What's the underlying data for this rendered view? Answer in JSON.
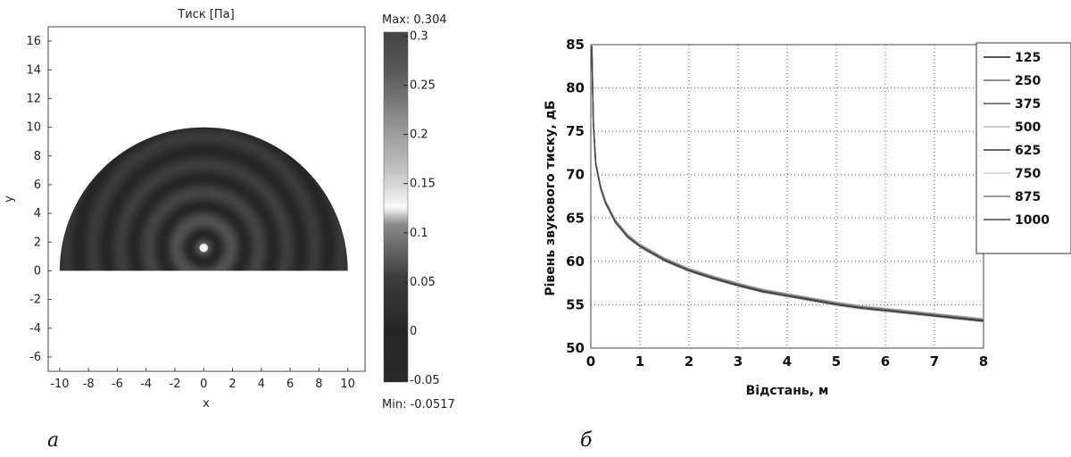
{
  "chart_data": [
    {
      "type": "heatmap",
      "title": "Тиск [Па]",
      "xlabel": "x",
      "ylabel": "y",
      "xlim": [
        -10.8,
        11.2
      ],
      "ylim": [
        -7,
        17
      ],
      "xticks": [
        -10,
        -8,
        -6,
        -4,
        -2,
        0,
        2,
        4,
        6,
        8,
        10
      ],
      "yticks": [
        -6,
        -4,
        -2,
        0,
        2,
        4,
        6,
        8,
        10,
        12,
        14,
        16
      ],
      "source": [
        0,
        1.6
      ],
      "domain_radius": 10,
      "ring_count": 8,
      "colorbar": {
        "max_label": "Max: 0.304",
        "min_label": "Min: -0.0517",
        "range": [
          -0.0517,
          0.304
        ],
        "ticks": [
          -0.05,
          0,
          0.05,
          0.1,
          0.15,
          0.2,
          0.25,
          0.3
        ],
        "tick_labels": [
          "-0.05",
          "0",
          "0.05",
          "0.1",
          "0.15",
          "0.2",
          "0.25",
          "0.3"
        ]
      },
      "panel_label": "а"
    },
    {
      "type": "line",
      "title": "",
      "xlabel": "Відстань, м",
      "ylabel": "Рівень звукового тиску, дБ",
      "xlim": [
        0,
        8
      ],
      "ylim": [
        50,
        85
      ],
      "xticks": [
        0,
        1,
        2,
        3,
        4,
        5,
        6,
        7,
        8
      ],
      "yticks": [
        50,
        55,
        60,
        65,
        70,
        75,
        80,
        85
      ],
      "grid": true,
      "legend_position": "right",
      "x": [
        0.02,
        0.05,
        0.1,
        0.2,
        0.3,
        0.5,
        0.75,
        1,
        1.5,
        2,
        2.5,
        3,
        3.5,
        4,
        4.5,
        5,
        5.5,
        6,
        6.5,
        7,
        7.5,
        8
      ],
      "series": [
        {
          "name": "125",
          "values": [
            85,
            76,
            71.3,
            68.5,
            66.8,
            64.6,
            62.9,
            61.8,
            60.2,
            59.0,
            58.1,
            57.3,
            56.6,
            56.1,
            55.6,
            55.1,
            54.7,
            54.4,
            54.1,
            53.8,
            53.5,
            53.2
          ]
        },
        {
          "name": "250",
          "values": [
            84.8,
            76.1,
            71.4,
            68.6,
            66.9,
            64.7,
            63.0,
            61.9,
            60.3,
            59.1,
            58.2,
            57.4,
            56.7,
            56.2,
            55.7,
            55.2,
            54.8,
            54.5,
            54.2,
            53.9,
            53.6,
            53.3
          ]
        },
        {
          "name": "375",
          "values": [
            84.6,
            75.9,
            71.2,
            68.4,
            66.7,
            64.5,
            62.8,
            61.7,
            60.1,
            58.9,
            58.0,
            57.2,
            56.5,
            56.0,
            55.5,
            55.0,
            54.6,
            54.3,
            54.0,
            53.7,
            53.4,
            53.1
          ]
        },
        {
          "name": "500",
          "values": [
            85,
            76.2,
            71.5,
            68.7,
            67.0,
            64.8,
            63.1,
            62.0,
            60.4,
            59.2,
            58.3,
            57.5,
            56.8,
            56.3,
            55.8,
            55.3,
            54.9,
            54.6,
            54.3,
            54.0,
            53.7,
            53.4
          ]
        },
        {
          "name": "625",
          "values": [
            84.9,
            76.0,
            71.3,
            68.5,
            66.8,
            64.6,
            62.9,
            61.8,
            60.2,
            59.0,
            58.1,
            57.3,
            56.6,
            56.1,
            55.6,
            55.1,
            54.7,
            54.4,
            54.1,
            53.8,
            53.5,
            53.2
          ]
        },
        {
          "name": "750",
          "values": [
            84.7,
            75.8,
            71.1,
            68.3,
            66.6,
            64.4,
            62.7,
            61.6,
            60.0,
            58.8,
            57.9,
            57.1,
            56.4,
            55.9,
            55.4,
            54.9,
            54.5,
            54.2,
            53.9,
            53.6,
            53.3,
            53.0
          ]
        },
        {
          "name": "875",
          "values": [
            84.9,
            76.1,
            71.4,
            68.6,
            66.9,
            64.7,
            63.0,
            61.9,
            60.3,
            59.1,
            58.2,
            57.4,
            56.7,
            56.2,
            55.7,
            55.2,
            54.8,
            54.5,
            54.2,
            53.9,
            53.6,
            53.3
          ]
        },
        {
          "name": "1000",
          "values": [
            84.8,
            75.9,
            71.2,
            68.4,
            66.7,
            64.5,
            62.8,
            61.7,
            60.1,
            58.9,
            58.0,
            57.2,
            56.5,
            56.0,
            55.5,
            55.0,
            54.6,
            54.3,
            54.0,
            53.7,
            53.4,
            53.1
          ]
        }
      ],
      "series_colors": [
        "#1a1a1a",
        "#6a6a6a",
        "#555555",
        "#bdbdbd",
        "#333333",
        "#cfcfcf",
        "#7a7a7a",
        "#454545"
      ],
      "panel_label": "б"
    }
  ]
}
